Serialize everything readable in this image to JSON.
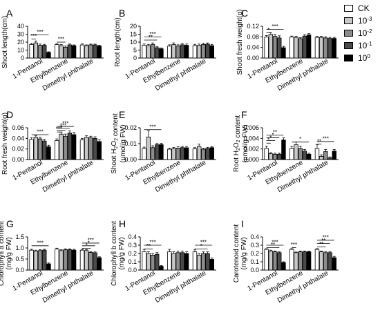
{
  "legend": {
    "items": [
      {
        "base": "CK",
        "exp": "",
        "color": "#ffffff"
      },
      {
        "base": "10",
        "exp": "-3",
        "color": "#c8c8c8"
      },
      {
        "base": "10",
        "exp": "-2",
        "color": "#8c8c8c"
      },
      {
        "base": "10",
        "exp": "-1",
        "color": "#4a4a4a"
      },
      {
        "base": "10",
        "exp": "0",
        "color": "#000000"
      }
    ]
  },
  "chart_data": [
    {
      "type": "bar",
      "panel": "A",
      "ylabel": "Shoot length(cm)",
      "ylim": [
        0,
        40
      ],
      "yticks": [
        "0",
        "10",
        "20",
        "30",
        "40"
      ],
      "categories": [
        "1-Pentanol",
        "Ethylbenzene",
        "Dimethyl phthalate"
      ],
      "series": [
        {
          "name": "CK",
          "values": [
            17,
            17,
            16.5
          ],
          "errors": [
            1.5,
            1.2,
            1.2
          ]
        },
        {
          "name": "10-3",
          "values": [
            19,
            15.5,
            15.5
          ],
          "errors": [
            2.5,
            1.5,
            1
          ]
        },
        {
          "name": "10-2",
          "values": [
            16,
            13.5,
            16.5
          ],
          "errors": [
            1.5,
            1.5,
            1
          ]
        },
        {
          "name": "10-1",
          "values": [
            16,
            16.5,
            16.5
          ],
          "errors": [
            1.2,
            1.2,
            1
          ]
        },
        {
          "name": "10^0",
          "values": [
            7,
            15.5,
            15
          ],
          "errors": [
            0.8,
            1,
            1
          ]
        }
      ],
      "significance": [
        {
          "group": 0,
          "from": 0,
          "to": 4,
          "label": "***",
          "level": 29
        },
        {
          "group": 0,
          "from": 0,
          "to": 1,
          "label": "***",
          "level": 24
        },
        {
          "group": 1,
          "from": 0,
          "to": 2,
          "label": "***",
          "level": 20
        }
      ]
    },
    {
      "type": "bar",
      "panel": "B",
      "ylabel": "Root length(cm)",
      "ylim": [
        0,
        20
      ],
      "yticks": [
        "0",
        "5",
        "10",
        "15",
        "20"
      ],
      "categories": [
        "1-Pentanol",
        "Ethylbenzene",
        "Dimethyl phthalate"
      ],
      "series": [
        {
          "name": "CK",
          "values": [
            8,
            7.5,
            7.8
          ],
          "errors": [
            0.8,
            0.8,
            0.8
          ]
        },
        {
          "name": "10-3",
          "values": [
            7.8,
            8.5,
            8
          ],
          "errors": [
            0.8,
            1,
            0.8
          ]
        },
        {
          "name": "10-2",
          "values": [
            8.5,
            7.5,
            8.5
          ],
          "errors": [
            1,
            0.8,
            0.8
          ]
        },
        {
          "name": "10-1",
          "values": [
            6.5,
            8.3,
            8.7
          ],
          "errors": [
            0.6,
            0.8,
            0.8
          ]
        },
        {
          "name": "10^0",
          "values": [
            5.8,
            8,
            7.8
          ],
          "errors": [
            0.5,
            0.8,
            0.8
          ]
        }
      ],
      "significance": [
        {
          "group": 0,
          "from": 0,
          "to": 4,
          "label": "***",
          "level": 13.3
        },
        {
          "group": 0,
          "from": 0,
          "to": 3,
          "label": "**",
          "level": 11.3
        }
      ]
    },
    {
      "type": "bar",
      "panel": "C",
      "ylabel": "Shoot fresh weight(g)",
      "ylim": [
        0,
        0.12
      ],
      "yticks": [
        "0.00",
        "0.04",
        "0.08",
        "0.12"
      ],
      "categories": [
        "1-Pentanol",
        "Ethylbenzene",
        "Dimethyl phthalate"
      ],
      "series": [
        {
          "name": "CK",
          "values": [
            0.079,
            0.079,
            0.078
          ],
          "errors": [
            0.006,
            0.004,
            0.004
          ]
        },
        {
          "name": "10-3",
          "values": [
            0.089,
            0.078,
            0.078
          ],
          "errors": [
            0.007,
            0.004,
            0.004
          ]
        },
        {
          "name": "10-2",
          "values": [
            0.082,
            0.073,
            0.076
          ],
          "errors": [
            0.007,
            0.004,
            0.004
          ]
        },
        {
          "name": "10-1",
          "values": [
            0.076,
            0.083,
            0.074
          ],
          "errors": [
            0.008,
            0.005,
            0.004
          ]
        },
        {
          "name": "10^0",
          "values": [
            0.039,
            0.087,
            0.074
          ],
          "errors": [
            0.005,
            0.005,
            0.004
          ]
        }
      ],
      "significance": [
        {
          "group": 0,
          "from": 0,
          "to": 4,
          "label": "***",
          "level": 0.108
        },
        {
          "group": 0,
          "from": 0,
          "to": 1,
          "label": "*",
          "level": 0.095
        }
      ]
    },
    {
      "type": "bar",
      "panel": "D",
      "ylabel": "Root fresh weight(g)",
      "ylim": [
        0,
        0.06
      ],
      "yticks": [
        "0.00",
        "0.02",
        "0.04",
        "0.06"
      ],
      "categories": [
        "1-Pentanol",
        "Ethylbenzene",
        "Dimethyl phthalate"
      ],
      "series": [
        {
          "name": "CK",
          "values": [
            0.038,
            0.036,
            0.037
          ],
          "errors": [
            0.003,
            0.003,
            0.003
          ]
        },
        {
          "name": "10-3",
          "values": [
            0.042,
            0.048,
            0.042
          ],
          "errors": [
            0.003,
            0.004,
            0.003
          ]
        },
        {
          "name": "10-2",
          "values": [
            0.039,
            0.044,
            0.041
          ],
          "errors": [
            0.003,
            0.004,
            0.003
          ]
        },
        {
          "name": "10-1",
          "values": [
            0.035,
            0.05,
            0.04
          ],
          "errors": [
            0.003,
            0.004,
            0.003
          ]
        },
        {
          "name": "10^0",
          "values": [
            0.024,
            0.047,
            0.034
          ],
          "errors": [
            0.003,
            0.004,
            0.003
          ]
        }
      ],
      "significance": [
        {
          "group": 0,
          "from": 0,
          "to": 4,
          "label": "***",
          "level": 0.047
        },
        {
          "group": 1,
          "from": 0,
          "to": 1,
          "label": "***",
          "level": 0.052
        },
        {
          "group": 1,
          "from": 0,
          "to": 2,
          "label": "*",
          "level": 0.0555
        },
        {
          "group": 1,
          "from": 0,
          "to": 3,
          "label": "***",
          "level": 0.059
        },
        {
          "group": 1,
          "from": 0,
          "to": 4,
          "label": "***",
          "level": 0.0625
        }
      ]
    },
    {
      "type": "bar",
      "panel": "E",
      "ylabel": "Shoot H2O2 content (µmol/g FW)",
      "ylim": [
        0,
        0.02
      ],
      "yticks": [
        "0.00",
        "0.01",
        "0.02"
      ],
      "categories": [
        "1-Pentanol",
        "Ethylbenzene",
        "Dimethyl phthalate"
      ],
      "series": [
        {
          "name": "CK",
          "values": [
            0.007,
            0.0065,
            0.0068
          ],
          "errors": [
            0.0008,
            0.0007,
            0.0007
          ]
        },
        {
          "name": "10-3",
          "values": [
            0.0142,
            0.0068,
            0.0082
          ],
          "errors": [
            0.004,
            0.0008,
            0.0015
          ]
        },
        {
          "name": "10-2",
          "values": [
            0.0075,
            0.0072,
            0.0065
          ],
          "errors": [
            0.0012,
            0.0008,
            0.0007
          ]
        },
        {
          "name": "10-1",
          "values": [
            0.0093,
            0.0075,
            0.007
          ],
          "errors": [
            0.0008,
            0.0008,
            0.0007
          ]
        },
        {
          "name": "10^0",
          "values": [
            0.0094,
            0.0074,
            0.0075
          ],
          "errors": [
            0.0008,
            0.0008,
            0.0007
          ]
        }
      ],
      "significance": [
        {
          "group": 0,
          "from": 0,
          "to": 4,
          "label": "***",
          "level": 0.0188
        }
      ]
    },
    {
      "type": "bar",
      "panel": "F",
      "ylabel": "Root H2O2 content (µmol/g FW)",
      "ylim": [
        0,
        0.006
      ],
      "yticks": [
        "0.000",
        "0.002",
        "0.004",
        "0.006"
      ],
      "categories": [
        "1-Pentanol",
        "Ethylbenzene",
        "Dimethyl phthalate"
      ],
      "series": [
        {
          "name": "CK",
          "values": [
            0.0021,
            0.0021,
            0.0021
          ],
          "errors": [
            0.0004,
            0.0004,
            0.0007
          ]
        },
        {
          "name": "10-3",
          "values": [
            0.0011,
            0.0028,
            0.0006
          ],
          "errors": [
            0.0002,
            0.0005,
            0.0003
          ]
        },
        {
          "name": "10-2",
          "values": [
            0.001,
            0.0021,
            0.0015
          ],
          "errors": [
            0.0002,
            0.0004,
            0.0004
          ]
        },
        {
          "name": "10-1",
          "values": [
            0.001,
            0.0016,
            0.0003
          ],
          "errors": [
            0.0002,
            0.0003,
            0.0002
          ]
        },
        {
          "name": "10^0",
          "values": [
            0.0037,
            0.001,
            0.0016
          ],
          "errors": [
            0.0004,
            0.0002,
            0.0003
          ]
        }
      ],
      "significance": [
        {
          "group": 0,
          "from": 0,
          "to": 1,
          "label": "*",
          "level": 0.0031
        },
        {
          "group": 0,
          "from": 0,
          "to": 2,
          "label": "*",
          "level": 0.0036
        },
        {
          "group": 0,
          "from": 0,
          "to": 3,
          "label": "*",
          "level": 0.0041
        },
        {
          "group": 0,
          "from": 0,
          "to": 4,
          "label": "**",
          "level": 0.0046
        },
        {
          "group": 1,
          "from": 0,
          "to": 4,
          "label": "*",
          "level": 0.0033
        },
        {
          "group": 2,
          "from": 0,
          "to": 1,
          "label": "**",
          "level": 0.0029
        },
        {
          "group": 2,
          "from": 0,
          "to": 4,
          "label": "***",
          "level": 0.0034
        }
      ]
    },
    {
      "type": "bar",
      "panel": "G",
      "ylabel": "Chlorophyll a content (mg/g FW)",
      "ylim": [
        0,
        1.5
      ],
      "yticks": [
        "0.0",
        "0.5",
        "1.0",
        "1.5"
      ],
      "categories": [
        "1-Pentanol",
        "Ethylbenzene",
        "Dimethyl phthalate"
      ],
      "series": [
        {
          "name": "CK",
          "values": [
            0.9,
            0.95,
            0.9
          ],
          "errors": [
            0.04,
            0.04,
            0.04
          ]
        },
        {
          "name": "10-3",
          "values": [
            0.86,
            0.88,
            0.88
          ],
          "errors": [
            0.04,
            0.04,
            0.04
          ]
        },
        {
          "name": "10-2",
          "values": [
            0.88,
            0.92,
            0.8
          ],
          "errors": [
            0.04,
            0.04,
            0.04
          ]
        },
        {
          "name": "10-1",
          "values": [
            0.9,
            0.92,
            0.78
          ],
          "errors": [
            0.04,
            0.04,
            0.04
          ]
        },
        {
          "name": "10^0",
          "values": [
            0.28,
            0.9,
            0.56
          ],
          "errors": [
            0.04,
            0.04,
            0.04
          ]
        }
      ],
      "significance": [
        {
          "group": 0,
          "from": 0,
          "to": 4,
          "label": "***",
          "level": 1.1
        },
        {
          "group": 2,
          "from": 0,
          "to": 2,
          "label": "*",
          "level": 0.98
        },
        {
          "group": 2,
          "from": 0,
          "to": 3,
          "label": "*",
          "level": 1.1
        },
        {
          "group": 2,
          "from": 0,
          "to": 4,
          "label": "***",
          "level": 1.22
        }
      ]
    },
    {
      "type": "bar",
      "panel": "H",
      "ylabel": "Chlorophyll b content (mg/g FW)",
      "ylim": [
        0,
        0.4
      ],
      "yticks": [
        "0.0",
        "0.1",
        "0.2",
        "0.3",
        "0.4"
      ],
      "categories": [
        "1-Pentanol",
        "Ethylbenzene",
        "Dimethyl phthalate"
      ],
      "series": [
        {
          "name": "CK",
          "values": [
            0.22,
            0.22,
            0.22
          ],
          "errors": [
            0.03,
            0.03,
            0.03
          ]
        },
        {
          "name": "10-3",
          "values": [
            0.2,
            0.2,
            0.18
          ],
          "errors": [
            0.02,
            0.02,
            0.02
          ]
        },
        {
          "name": "10-2",
          "values": [
            0.18,
            0.21,
            0.2
          ],
          "errors": [
            0.02,
            0.02,
            0.02
          ]
        },
        {
          "name": "10-1",
          "values": [
            0.19,
            0.21,
            0.2
          ],
          "errors": [
            0.02,
            0.02,
            0.02
          ]
        },
        {
          "name": "10^0",
          "values": [
            0.045,
            0.2,
            0.13
          ],
          "errors": [
            0.01,
            0.02,
            0.015
          ]
        }
      ],
      "significance": [
        {
          "group": 0,
          "from": 0,
          "to": 4,
          "label": "***",
          "level": 0.3
        },
        {
          "group": 0,
          "from": 0,
          "to": 2,
          "label": "**",
          "level": 0.255
        },
        {
          "group": 2,
          "from": 0,
          "to": 3,
          "label": "*",
          "level": 0.255
        },
        {
          "group": 2,
          "from": 0,
          "to": 4,
          "label": "***",
          "level": 0.3
        }
      ]
    },
    {
      "type": "bar",
      "panel": "I",
      "ylabel": "Carotenoid content (mg/g FW)",
      "ylim": [
        0,
        0.4
      ],
      "yticks": [
        "0.0",
        "0.1",
        "0.2",
        "0.3",
        "0.4"
      ],
      "categories": [
        "1-Pentanol",
        "Ethylbenzene",
        "Dimethyl phthalate"
      ],
      "series": [
        {
          "name": "CK",
          "values": [
            0.25,
            0.25,
            0.25
          ],
          "errors": [
            0.008,
            0.008,
            0.008
          ]
        },
        {
          "name": "10-3",
          "values": [
            0.23,
            0.21,
            0.22
          ],
          "errors": [
            0.01,
            0.008,
            0.01
          ]
        },
        {
          "name": "10-2",
          "values": [
            0.22,
            0.22,
            0.21
          ],
          "errors": [
            0.01,
            0.01,
            0.01
          ]
        },
        {
          "name": "10-1",
          "values": [
            0.21,
            0.22,
            0.21
          ],
          "errors": [
            0.01,
            0.01,
            0.01
          ]
        },
        {
          "name": "10^0",
          "values": [
            0.09,
            0.22,
            0.15
          ],
          "errors": [
            0.01,
            0.01,
            0.015
          ]
        }
      ],
      "significance": [
        {
          "group": 0,
          "from": 0,
          "to": 4,
          "label": "***",
          "level": 0.3
        },
        {
          "group": 0,
          "from": 0,
          "to": 3,
          "label": "**",
          "level": 0.27
        },
        {
          "group": 1,
          "from": 0,
          "to": 1,
          "label": "***",
          "level": 0.27
        },
        {
          "group": 2,
          "from": 0,
          "to": 2,
          "label": "**",
          "level": 0.28
        },
        {
          "group": 2,
          "from": 0,
          "to": 3,
          "label": "**",
          "level": 0.32
        },
        {
          "group": 2,
          "from": 0,
          "to": 4,
          "label": "***",
          "level": 0.36
        }
      ]
    }
  ]
}
